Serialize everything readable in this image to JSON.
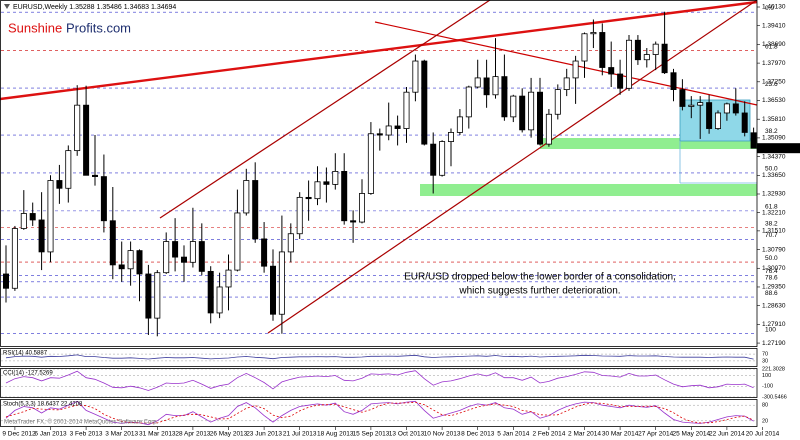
{
  "chart_data": {
    "type": "candlestick",
    "header": "EURUSD,Weekly 1.35288 1.35486 1.34683 1.34694",
    "logo": {
      "part1": "Sunshine",
      "part2": "Profits.com"
    },
    "annotation": [
      "EUR/USD dropped below the lower border of a consolidation,",
      "which suggests further deterioration."
    ],
    "copyright": "MetaTrader FX, © 2001-2014 MetaQuotes Software Corp.",
    "categories": [
      null,
      "9 Dec 2012",
      null,
      null,
      null,
      "6 Jan 2013",
      null,
      null,
      null,
      "3 Feb 2013",
      null,
      null,
      null,
      "3 Mar 2013",
      null,
      null,
      null,
      "31 Mar 2013",
      null,
      null,
      null,
      "28 Apr 2013",
      null,
      null,
      null,
      "26 May 2013",
      null,
      null,
      null,
      "23 Jun 2013",
      null,
      null,
      null,
      "21 Jul 2013",
      null,
      null,
      null,
      "18 Aug 2013",
      null,
      null,
      null,
      "15 Sep 2013",
      null,
      null,
      null,
      "13 Oct 2013",
      null,
      null,
      null,
      "10 Nov 2013",
      null,
      null,
      null,
      "8 Dec 2013",
      null,
      null,
      null,
      "5 Jan 2014",
      null,
      null,
      null,
      "2 Feb 2014",
      null,
      null,
      null,
      "2 Mar 2014",
      null,
      null,
      null,
      "30 Mar 2014",
      null,
      null,
      null,
      "27 Apr 2014",
      null,
      null,
      null,
      "25 May 2014",
      null,
      null,
      null,
      "22 Jun 2014",
      null,
      null,
      null,
      "20 Jul 2014"
    ],
    "open": [
      1.2985,
      1.293,
      1.316,
      1.3218,
      1.3193,
      1.307,
      1.3345,
      1.3315,
      1.346,
      1.3635,
      1.3365,
      1.336,
      1.319,
      1.302,
      1.3005,
      1.3075,
      1.2985,
      1.2815,
      1.299,
      1.311,
      1.305,
      1.303,
      1.311,
      1.2995,
      1.2835,
      1.2935,
      1.3,
      1.322,
      1.3345,
      1.312,
      1.3015,
      1.283,
      1.307,
      1.314,
      1.328,
      1.3275,
      1.334,
      1.333,
      1.338,
      1.319,
      1.3185,
      1.3295,
      1.3525,
      1.352,
      1.3555,
      1.3545,
      1.3685,
      1.3805,
      1.3485,
      1.3365,
      1.3495,
      1.353,
      1.359,
      1.3705,
      1.374,
      1.3675,
      1.3745,
      1.359,
      1.367,
      1.354,
      1.3685,
      1.3485,
      1.36,
      1.3695,
      1.374,
      1.3805,
      1.391,
      1.3915,
      1.378,
      1.3755,
      1.37,
      1.3885,
      1.381,
      1.383,
      1.387,
      1.376,
      1.3695,
      1.363,
      1.3635,
      1.3645,
      1.3545,
      1.3605,
      1.364,
      1.3605,
      1.35288,
      null
    ],
    "high": [
      1.3095,
      1.317,
      1.3308,
      1.326,
      1.33,
      1.3365,
      1.3405,
      1.348,
      1.3712,
      1.371,
      1.352,
      1.3445,
      1.332,
      1.311,
      1.311,
      1.308,
      1.302,
      1.3,
      1.3145,
      1.32,
      1.3095,
      1.324,
      1.318,
      1.3015,
      1.299,
      1.306,
      1.331,
      1.339,
      1.3415,
      1.3185,
      1.308,
      1.321,
      1.318,
      1.33,
      1.3345,
      1.34,
      1.3395,
      1.345,
      1.345,
      1.323,
      1.335,
      1.357,
      1.3545,
      1.3645,
      1.3595,
      1.3705,
      1.383,
      1.381,
      1.353,
      1.35,
      1.3545,
      1.362,
      1.371,
      1.381,
      1.381,
      1.3893,
      1.383,
      1.3675,
      1.37,
      1.374,
      1.374,
      1.362,
      1.3715,
      1.3775,
      1.3825,
      1.3915,
      1.3965,
      1.395,
      1.388,
      1.381,
      1.3905,
      1.3905,
      1.3855,
      1.388,
      1.3995,
      1.3775,
      1.3735,
      1.367,
      1.367,
      1.3675,
      1.3615,
      1.3645,
      1.37,
      1.365,
      1.35486,
      null
    ],
    "low": [
      1.2875,
      1.292,
      1.3155,
      1.317,
      1.3,
      1.303,
      1.3255,
      1.326,
      1.344,
      1.3365,
      1.3325,
      1.3145,
      1.2965,
      1.2955,
      1.294,
      1.288,
      1.275,
      1.2745,
      1.2985,
      1.2995,
      1.2955,
      1.301,
      1.298,
      1.2795,
      1.2815,
      1.2845,
      1.2995,
      1.321,
      1.3105,
      1.299,
      1.2805,
      1.2755,
      1.303,
      1.312,
      1.319,
      1.325,
      1.326,
      1.331,
      1.3175,
      1.3105,
      1.318,
      1.329,
      1.346,
      1.35,
      1.348,
      1.349,
      1.365,
      1.348,
      1.3295,
      1.336,
      1.34,
      1.352,
      1.3545,
      1.37,
      1.3625,
      1.366,
      1.3575,
      1.357,
      1.353,
      1.351,
      1.348,
      1.3475,
      1.358,
      1.367,
      1.364,
      1.374,
      1.3855,
      1.375,
      1.3705,
      1.3675,
      1.369,
      1.379,
      1.378,
      1.377,
      1.3755,
      1.365,
      1.3615,
      1.3585,
      1.3505,
      1.3525,
      1.354,
      1.3575,
      1.3595,
      1.3515,
      1.34683,
      null
    ],
    "close": [
      1.293,
      1.316,
      1.3218,
      1.3193,
      1.307,
      1.3345,
      1.3315,
      1.346,
      1.3635,
      1.3365,
      1.336,
      1.319,
      1.302,
      1.3005,
      1.3075,
      1.2985,
      1.2815,
      1.299,
      1.311,
      1.305,
      1.303,
      1.311,
      1.2995,
      1.2835,
      1.2935,
      1.3,
      1.322,
      1.3345,
      1.312,
      1.3015,
      1.283,
      1.307,
      1.314,
      1.328,
      1.3275,
      1.334,
      1.333,
      1.338,
      1.319,
      1.3185,
      1.3295,
      1.3525,
      1.352,
      1.3555,
      1.3545,
      1.3685,
      1.3805,
      1.3485,
      1.3365,
      1.3495,
      1.353,
      1.359,
      1.3705,
      1.374,
      1.3675,
      1.3745,
      1.359,
      1.367,
      1.354,
      1.3685,
      1.3485,
      1.36,
      1.3695,
      1.374,
      1.3805,
      1.391,
      1.3915,
      1.378,
      1.3755,
      1.37,
      1.3885,
      1.381,
      1.383,
      1.387,
      1.376,
      1.3695,
      1.363,
      1.3635,
      1.3645,
      1.3545,
      1.3605,
      1.364,
      1.3605,
      1.353,
      1.34694,
      null
    ],
    "ylim": [
      1.27,
      1.404
    ],
    "yticks": [
      {
        "value": 1.4013,
        "label": "1.40130"
      },
      {
        "value": 1.3941,
        "label": "1.39410"
      },
      {
        "value": 1.3869,
        "label": "1.38690"
      },
      {
        "value": 1.3797,
        "label": "1.37970"
      },
      {
        "value": 1.3725,
        "label": "1.37250"
      },
      {
        "value": 1.3653,
        "label": "1.36530"
      },
      {
        "value": 1.3581,
        "label": "1.35810"
      },
      {
        "value": 1.3509,
        "label": "1.35090"
      },
      {
        "value": 1.3437,
        "label": "1.34370"
      },
      {
        "value": 1.3365,
        "label": "1.33650"
      },
      {
        "value": 1.3293,
        "label": "1.32930"
      },
      {
        "value": 1.3221,
        "label": "1.32210"
      },
      {
        "value": 1.3151,
        "label": "1.31510"
      },
      {
        "value": 1.3079,
        "label": "1.30790"
      },
      {
        "value": 1.3007,
        "label": "1.30070"
      },
      {
        "value": 1.2935,
        "label": "1.29350"
      },
      {
        "value": 1.2863,
        "label": "1.28630"
      },
      {
        "value": 1.2791,
        "label": "1.27910"
      },
      {
        "value": 1.2719,
        "label": "1.27190"
      }
    ],
    "last_price": {
      "value": 1.34694,
      "label": "1.34694"
    },
    "up_color": "#ffffff",
    "down_color": "#000000",
    "fib_levels": [
      {
        "value": 1.3993,
        "label": "0.0",
        "color": "#3333cc"
      },
      {
        "value": 1.3845,
        "label": "61.8",
        "color": "#cc0000"
      },
      {
        "value": 1.3701,
        "label": "23.6",
        "color": "#3333cc"
      },
      {
        "value": 1.352,
        "label": "38.2",
        "color": "#3333cc"
      },
      {
        "value": 1.3374,
        "label": "50.0",
        "color": "#3333cc"
      },
      {
        "value": 1.3228,
        "label": "61.8",
        "color": "#3333cc"
      },
      {
        "value": 1.3163,
        "label": "38.2",
        "color": "#cc0000"
      },
      {
        "value": 1.3118,
        "label": "70.7",
        "color": "#3333cc"
      },
      {
        "value": 1.3031,
        "label": "50.0",
        "color": "#cc0000"
      },
      {
        "value": 1.298,
        "label": "76.4",
        "color": "#3333cc"
      },
      {
        "value": 1.2955,
        "label": "78.6",
        "color": "#3333cc"
      },
      {
        "value": 1.2896,
        "label": "88.6",
        "color": "#3333cc"
      },
      {
        "value": 1.2755,
        "label": "100",
        "color": "#3333cc"
      }
    ],
    "indicators": [
      {
        "label": "RSI(14) 40.5887",
        "ylim": [
          0,
          100
        ],
        "yticks": [
          70,
          30
        ],
        "series": [
          {
            "color": "#3c3c9c",
            "style": "solid",
            "values": [
              48,
              55,
              58,
              57,
              52,
              57,
              56,
              60,
              65,
              55,
              55,
              50,
              46,
              46,
              48,
              45,
              41,
              46,
              50,
              48,
              48,
              50,
              46,
              42,
              45,
              47,
              53,
              56,
              51,
              48,
              43,
              50,
              52,
              54,
              54,
              55,
              54,
              55,
              51,
              51,
              53,
              57,
              57,
              58,
              57,
              60,
              63,
              54,
              50,
              53,
              54,
              56,
              58,
              60,
              57,
              62,
              56,
              57,
              54,
              58,
              53,
              55,
              57,
              58,
              60,
              63,
              62,
              59,
              58,
              57,
              61,
              59,
              59,
              60,
              56,
              53,
              52,
              52,
              52,
              50,
              52,
              53,
              52,
              52,
              40.5887,
              null
            ]
          }
        ]
      },
      {
        "label": "CCI(14) -127.5269",
        "ylim": [
          -300.5466,
          221.3028
        ],
        "yticks": [
          221.3028,
          100,
          -100,
          -300.5466
        ],
        "series": [
          {
            "color": "#9932cc",
            "style": "solid",
            "values": [
              -40,
              40,
              80,
              60,
              0,
              60,
              50,
              110,
              180,
              60,
              30,
              -40,
              -120,
              -130,
              -100,
              -130,
              -180,
              -120,
              -40,
              -50,
              -40,
              10,
              -60,
              -140,
              -90,
              -60,
              60,
              140,
              60,
              -30,
              -150,
              -20,
              30,
              70,
              80,
              90,
              80,
              100,
              10,
              0,
              50,
              130,
              120,
              130,
              110,
              160,
              190,
              40,
              -80,
              -20,
              0,
              40,
              90,
              130,
              90,
              150,
              60,
              60,
              10,
              70,
              -40,
              -10,
              50,
              80,
              120,
              170,
              160,
              100,
              90,
              70,
              140,
              90,
              90,
              110,
              20,
              -60,
              -110,
              -90,
              -80,
              -130,
              -110,
              -60,
              -70,
              -60,
              -127.5269,
              null
            ]
          }
        ]
      },
      {
        "label": "Stoch(5,3,3) 18.6437 22.4208",
        "ylim": [
          0,
          100
        ],
        "yticks": [
          80,
          20
        ],
        "series": [
          {
            "color": "#9932cc",
            "style": "solid",
            "values": [
              30,
              60,
              75,
              70,
              50,
              70,
              65,
              80,
              95,
              60,
              45,
              30,
              15,
              10,
              15,
              12,
              5,
              20,
              45,
              40,
              40,
              55,
              35,
              15,
              30,
              40,
              75,
              90,
              70,
              40,
              15,
              40,
              60,
              75,
              80,
              85,
              80,
              88,
              55,
              45,
              60,
              85,
              88,
              90,
              85,
              92,
              95,
              60,
              30,
              40,
              50,
              60,
              75,
              85,
              80,
              90,
              70,
              65,
              45,
              55,
              30,
              40,
              60,
              75,
              85,
              92,
              90,
              80,
              75,
              70,
              80,
              75,
              72,
              78,
              50,
              25,
              15,
              12,
              10,
              15,
              25,
              35,
              40,
              38,
              18.6437,
              null
            ]
          },
          {
            "color": "#dd0000",
            "style": "dashed",
            "values": [
              35,
              45,
              55,
              68,
              65,
              63,
              62,
              72,
              80,
              78,
              67,
              45,
              30,
              18,
              13,
              12,
              11,
              12,
              23,
              35,
              42,
              45,
              43,
              35,
              27,
              28,
              48,
              68,
              78,
              67,
              42,
              32,
              38,
              58,
              72,
              80,
              82,
              84,
              74,
              63,
              53,
              63,
              78,
              88,
              88,
              89,
              91,
              82,
              62,
              43,
              40,
              50,
              62,
              73,
              80,
              85,
              80,
              75,
              60,
              55,
              43,
              42,
              43,
              58,
              73,
              84,
              89,
              87,
              82,
              75,
              75,
              75,
              76,
              75,
              67,
              51,
              30,
              17,
              12,
              12,
              17,
              25,
              33,
              38,
              22.4208,
              null
            ]
          }
        ]
      }
    ]
  }
}
